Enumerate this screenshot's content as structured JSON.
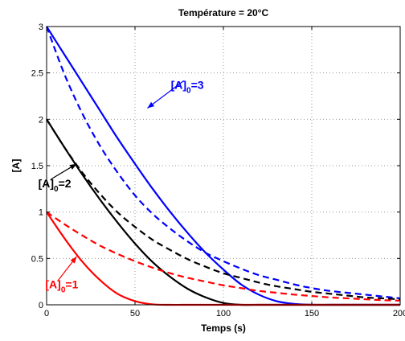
{
  "chart_data": {
    "type": "line",
    "title": "Température = 20°C",
    "xlabel": "Temps (s)",
    "ylabel": "[A]",
    "xlim": [
      0,
      200
    ],
    "ylim": [
      0,
      3
    ],
    "xticks": [
      0,
      50,
      100,
      150,
      200
    ],
    "yticks": [
      0,
      0.5,
      1,
      1.5,
      2,
      2.5,
      3
    ],
    "xtick_labels": [
      "0",
      "50",
      "100",
      "150",
      "200"
    ],
    "ytick_labels": [
      "0",
      "0.5",
      "1",
      "1.5",
      "2",
      "2.5",
      "3"
    ],
    "grid": true,
    "x": [
      0,
      10,
      20,
      30,
      40,
      50,
      60,
      70,
      80,
      90,
      100,
      110,
      120,
      130,
      140,
      150,
      160,
      170,
      180,
      190,
      200
    ],
    "series": [
      {
        "color": "#0000ff",
        "style": "solid",
        "values": [
          3.0,
          2.7,
          2.4,
          2.1,
          1.8,
          1.52,
          1.25,
          1.0,
          0.77,
          0.56,
          0.38,
          0.22,
          0.11,
          0.04,
          0.01,
          0.0,
          0.0,
          0.0,
          0.0,
          0.0,
          0.0
        ]
      },
      {
        "color": "#0000ff",
        "style": "dashed",
        "values": [
          3.0,
          2.49,
          2.07,
          1.72,
          1.43,
          1.18,
          0.98,
          0.82,
          0.68,
          0.56,
          0.47,
          0.39,
          0.32,
          0.27,
          0.22,
          0.18,
          0.15,
          0.13,
          0.11,
          0.09,
          0.07
        ]
      },
      {
        "color": "#000000",
        "style": "solid",
        "values": [
          2.0,
          1.7,
          1.41,
          1.14,
          0.89,
          0.66,
          0.46,
          0.3,
          0.17,
          0.08,
          0.02,
          0.0,
          0.0,
          0.0,
          0.0,
          0.0,
          0.0,
          0.0,
          0.0,
          0.0,
          0.0
        ]
      },
      {
        "color": "#000000",
        "style": "dashed",
        "values": [
          2.0,
          1.7,
          1.43,
          1.2,
          1.0,
          0.84,
          0.7,
          0.59,
          0.49,
          0.41,
          0.34,
          0.29,
          0.24,
          0.2,
          0.17,
          0.14,
          0.12,
          0.1,
          0.08,
          0.07,
          0.06
        ]
      },
      {
        "color": "#ff0000",
        "style": "solid",
        "values": [
          1.0,
          0.72,
          0.47,
          0.27,
          0.12,
          0.04,
          0.005,
          0.0,
          0.0,
          0.0,
          0.0,
          0.0,
          0.0,
          0.0,
          0.0,
          0.0,
          0.0,
          0.0,
          0.0,
          0.0,
          0.0
        ]
      },
      {
        "color": "#ff0000",
        "style": "dashed",
        "values": [
          1.0,
          0.87,
          0.75,
          0.64,
          0.55,
          0.47,
          0.4,
          0.34,
          0.29,
          0.25,
          0.21,
          0.18,
          0.15,
          0.13,
          0.11,
          0.095,
          0.08,
          0.07,
          0.06,
          0.05,
          0.045
        ]
      }
    ],
    "annotations": [
      {
        "main": "[A]",
        "sub": "0",
        "tail": "=3",
        "color": "#0000ff",
        "at": [
          57,
          2.12
        ],
        "text_at": [
          73,
          2.38
        ]
      },
      {
        "main": "[A]",
        "sub": "0",
        "tail": "=2",
        "color": "#000000",
        "at": [
          17,
          1.52
        ],
        "text_at": [
          -2,
          1.32
        ]
      },
      {
        "main": "[A]",
        "sub": "0",
        "tail": "=1",
        "color": "#ff0000",
        "at": [
          17,
          0.52
        ],
        "text_at": [
          2,
          0.23
        ]
      }
    ]
  }
}
